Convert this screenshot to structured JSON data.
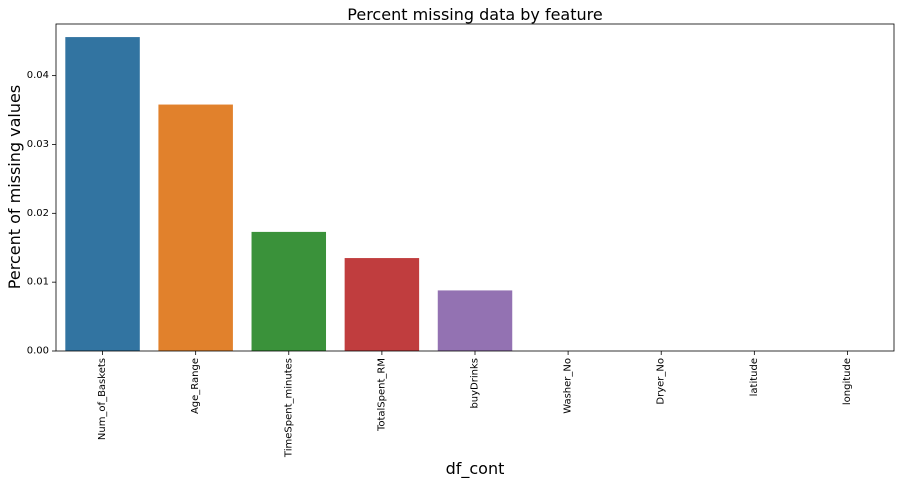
{
  "chart_data": {
    "type": "bar",
    "title": "Percent missing data by feature",
    "xlabel": "df_cont",
    "ylabel": "Percent of missing values",
    "categories": [
      "Num_of_Baskets",
      "Age_Range",
      "TimeSpent_minutes",
      "TotalSpent_RM",
      "buyDrinks",
      "Washer_No",
      "Dryer_No",
      "latitude",
      "longitude"
    ],
    "values": [
      0.0456,
      0.0358,
      0.0173,
      0.0135,
      0.0088,
      0,
      0,
      0,
      0
    ],
    "colors": [
      "#3274a1",
      "#e1812c",
      "#3a923a",
      "#c03d3e",
      "#9372b2",
      "#845b53",
      "#d684bd",
      "#7f7f7f",
      "#a9aa35"
    ],
    "ylim": [
      0,
      0.0475
    ],
    "yticks": [
      0.0,
      0.01,
      0.02,
      0.03,
      0.04
    ],
    "ytick_labels": [
      "0.00",
      "0.01",
      "0.02",
      "0.03",
      "0.04"
    ],
    "grid": false,
    "legend": "none"
  }
}
